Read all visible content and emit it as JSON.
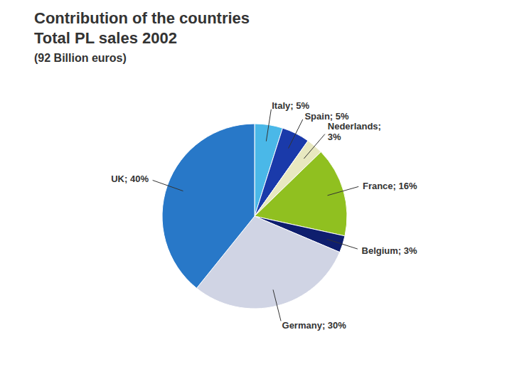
{
  "chart_data": {
    "type": "pie",
    "title": "Contribution of the countries\nTotal PL sales 2002",
    "subtitle": "(92 Billion euros)",
    "categories": [
      "Italy",
      "Spain",
      "Nederlands",
      "France",
      "Belgium",
      "Germany",
      "UK"
    ],
    "values": [
      5,
      5,
      3,
      16,
      3,
      30,
      40
    ],
    "colors": [
      "#4ab8e8",
      "#1a3aaa",
      "#e8e8c0",
      "#90c020",
      "#0e1e6e",
      "#d0d4e4",
      "#2878c8"
    ],
    "data_labels": true,
    "value_labels": [
      "Italy; 5%",
      "Spain; 5%",
      "Nederlands;\n3%",
      "France; 16%",
      "Belgium; 3%",
      "Germany; 30%",
      "UK; 40%"
    ]
  }
}
